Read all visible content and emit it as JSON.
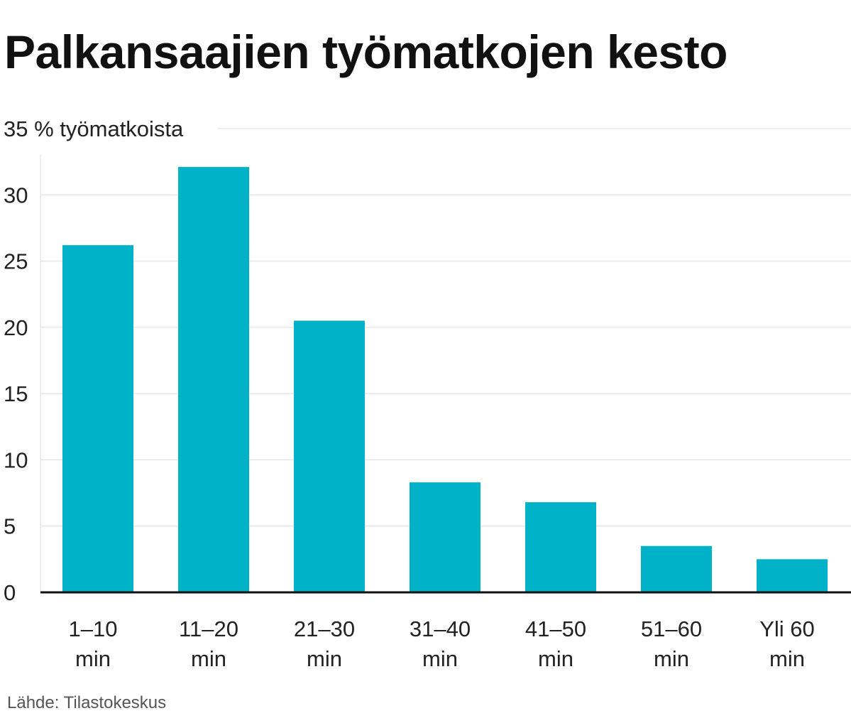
{
  "chart_data": {
    "type": "bar",
    "title": "Palkansaajien työmatkojen kesto",
    "ylabel": "% työmatkoista",
    "top_tick_label": "35 % työmatkoista",
    "categories": [
      "1–10 min",
      "11–20 min",
      "21–30 min",
      "31–40 min",
      "41–50 min",
      "51–60 min",
      "Yli 60 min"
    ],
    "category_lines": [
      [
        "1–10",
        "min"
      ],
      [
        "11–20",
        "min"
      ],
      [
        "21–30",
        "min"
      ],
      [
        "31–40",
        "min"
      ],
      [
        "41–50",
        "min"
      ],
      [
        "51–60",
        "min"
      ],
      [
        "Yli 60",
        "min"
      ]
    ],
    "values": [
      26.2,
      32.1,
      20.5,
      8.3,
      6.8,
      3.5,
      2.5
    ],
    "yticks": [
      0,
      5,
      10,
      15,
      20,
      25,
      30,
      35
    ],
    "ylim": [
      0,
      35
    ],
    "grid": true,
    "bar_color": "#00b2c7",
    "source": "Lähde: Tilastokeskus"
  }
}
